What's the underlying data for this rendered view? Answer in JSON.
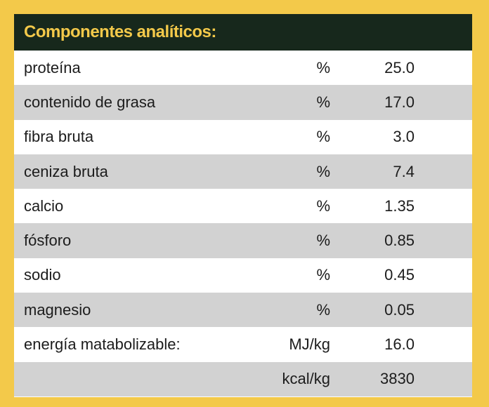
{
  "header": {
    "title": "Componentes analíticos:"
  },
  "colors": {
    "border": "#f3c94a",
    "header_bg": "#17281c",
    "header_text": "#f3c94a",
    "row_shaded": "#d2d2d2",
    "row_plain": "#ffffff"
  },
  "rows": [
    {
      "name": "proteína",
      "unit": "%",
      "value": "25.0"
    },
    {
      "name": "contenido de grasa",
      "unit": "%",
      "value": "17.0"
    },
    {
      "name": "fibra bruta",
      "unit": "%",
      "value": "3.0"
    },
    {
      "name": "ceniza bruta",
      "unit": "%",
      "value": "7.4"
    },
    {
      "name": "calcio",
      "unit": "%",
      "value": "1.35"
    },
    {
      "name": "fósforo",
      "unit": "%",
      "value": "0.85"
    },
    {
      "name": "sodio",
      "unit": "%",
      "value": "0.45"
    },
    {
      "name": "magnesio",
      "unit": "%",
      "value": "0.05"
    },
    {
      "name": "energía matabolizable:",
      "unit": "MJ/kg",
      "value": "16.0"
    },
    {
      "name": "",
      "unit": "kcal/kg",
      "value": "3830"
    }
  ]
}
